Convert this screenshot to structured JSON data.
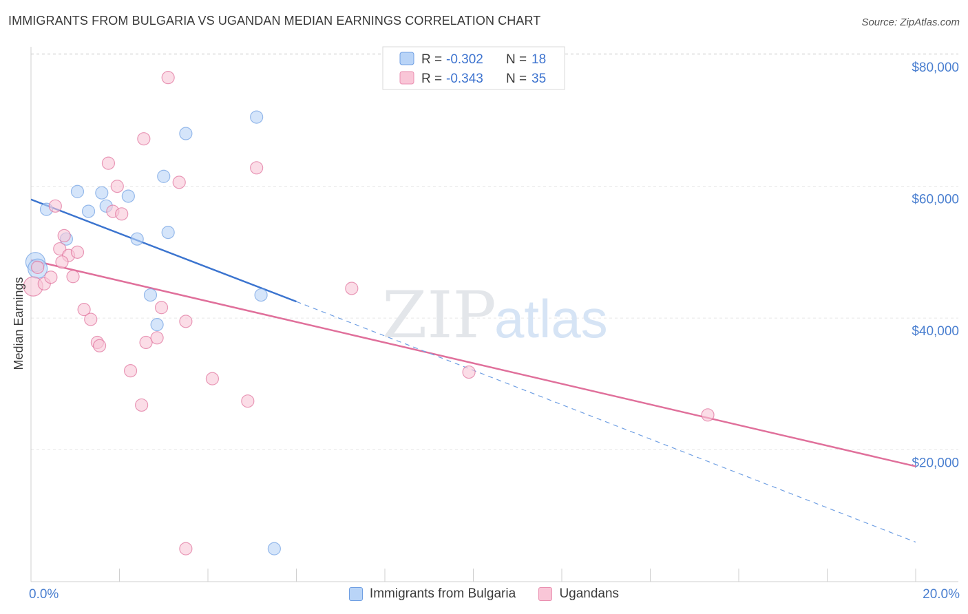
{
  "title": "IMMIGRANTS FROM BULGARIA VS UGANDAN MEDIAN EARNINGS CORRELATION CHART",
  "source": "Source: ZipAtlas.com",
  "watermark": {
    "zip": "ZIP",
    "atlas": "atlas"
  },
  "legend": {
    "rows": [
      {
        "r_label": "R =",
        "r_value": "-0.302",
        "n_label": "N =",
        "n_value": "18",
        "fill": "#b9d4f7",
        "stroke": "#6f9fe3"
      },
      {
        "r_label": "R =",
        "r_value": "-0.343",
        "n_label": "N =",
        "n_value": "35",
        "fill": "#f9c6d7",
        "stroke": "#ea8fb0"
      }
    ]
  },
  "bottom_legend": [
    {
      "label": "Immigrants from Bulgaria",
      "fill": "#b9d4f7",
      "stroke": "#6f9fe3"
    },
    {
      "label": "Ugandans",
      "fill": "#f9c6d7",
      "stroke": "#ea8fb0"
    }
  ],
  "chart_data": {
    "type": "scatter",
    "ylabel": "Median Earnings",
    "xlim": [
      0,
      20
    ],
    "ylim": [
      0,
      82000
    ],
    "x_tick_labels": [
      "0.0%",
      "20.0%"
    ],
    "y_ticks": [
      {
        "value": 20000,
        "label": "$20,000"
      },
      {
        "value": 40000,
        "label": "$40,000"
      },
      {
        "value": 60000,
        "label": "$60,000"
      },
      {
        "value": 80000,
        "label": "$80,000"
      }
    ],
    "grid": "horizontal dashed",
    "series": [
      {
        "name": "Immigrants from Bulgaria",
        "color": "#6f9fe3",
        "fill": "#b9d4f7",
        "points": [
          [
            0.1,
            48500
          ],
          [
            0.35,
            56500
          ],
          [
            0.8,
            52000
          ],
          [
            1.05,
            59200
          ],
          [
            1.3,
            56200
          ],
          [
            1.6,
            59000
          ],
          [
            1.7,
            57000
          ],
          [
            2.2,
            58500
          ],
          [
            2.4,
            52000
          ],
          [
            2.7,
            43500
          ],
          [
            2.85,
            39000
          ],
          [
            3.0,
            61500
          ],
          [
            3.1,
            53000
          ],
          [
            3.5,
            68000
          ],
          [
            5.1,
            70500
          ],
          [
            5.2,
            43500
          ],
          [
            5.5,
            5000
          ],
          [
            0.15,
            47500
          ]
        ],
        "trend": {
          "x": [
            0,
            6
          ],
          "y": [
            58000,
            42500
          ],
          "extended_x": [
            6,
            20
          ],
          "extended_y": [
            42500,
            6000
          ]
        }
      },
      {
        "name": "Ugandans",
        "color": "#e0709b",
        "fill": "#f9c6d7",
        "points": [
          [
            0.05,
            44800
          ],
          [
            0.15,
            47700
          ],
          [
            0.3,
            45200
          ],
          [
            0.45,
            46200
          ],
          [
            0.55,
            57000
          ],
          [
            0.65,
            50500
          ],
          [
            0.75,
            52500
          ],
          [
            0.85,
            49500
          ],
          [
            0.95,
            46300
          ],
          [
            0.7,
            48500
          ],
          [
            1.05,
            50000
          ],
          [
            1.2,
            41300
          ],
          [
            1.35,
            39800
          ],
          [
            1.5,
            36300
          ],
          [
            1.55,
            35800
          ],
          [
            1.75,
            63500
          ],
          [
            1.85,
            56200
          ],
          [
            1.95,
            60000
          ],
          [
            2.05,
            55800
          ],
          [
            2.25,
            32000
          ],
          [
            2.5,
            26800
          ],
          [
            2.55,
            67200
          ],
          [
            2.6,
            36300
          ],
          [
            2.85,
            37000
          ],
          [
            2.95,
            41600
          ],
          [
            3.1,
            76500
          ],
          [
            3.35,
            60600
          ],
          [
            3.5,
            39500
          ],
          [
            3.5,
            5000
          ],
          [
            4.1,
            30800
          ],
          [
            4.9,
            27400
          ],
          [
            5.1,
            62800
          ],
          [
            7.25,
            44500
          ],
          [
            9.9,
            31800
          ],
          [
            15.3,
            25300
          ]
        ],
        "trend": {
          "x": [
            0,
            20
          ],
          "y": [
            48800,
            17500
          ]
        }
      }
    ]
  }
}
